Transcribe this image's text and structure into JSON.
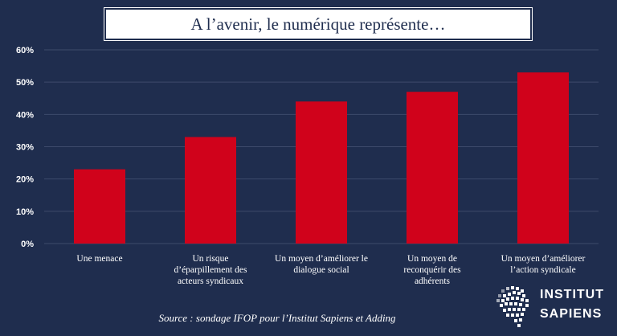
{
  "chart_data": {
    "type": "bar",
    "title": "A l’avenir, le numérique représente…",
    "categories": [
      [
        "Une menace"
      ],
      [
        "Un risque",
        "d’éparpillement des",
        "acteurs syndicaux"
      ],
      [
        "Un moyen d’améliorer le",
        "dialogue social"
      ],
      [
        "Un moyen de",
        "reconquérir des",
        "adhérents"
      ],
      [
        "Un moyen d’améliorer",
        "l’action syndicale"
      ]
    ],
    "values": [
      23,
      33,
      44,
      47,
      53
    ],
    "ylim": [
      0,
      60
    ],
    "yticks": [
      0,
      10,
      20,
      30,
      40,
      50,
      60
    ],
    "ytick_labels": [
      "0%",
      "10%",
      "20%",
      "30%",
      "40%",
      "50%",
      "60%"
    ],
    "grid": true,
    "bar_color": "#d0021b",
    "grid_color": "#3d4a6b"
  },
  "source": "Source : sondage IFOP pour l’Institut Sapiens et Adding",
  "logo": {
    "line1": "INSTITUT",
    "line2": "SAPIENS",
    "icon": "head-silhouette-icon"
  },
  "colors": {
    "background": "#1f2d4e",
    "title_box": "#ffffff",
    "text": "#ffffff"
  }
}
